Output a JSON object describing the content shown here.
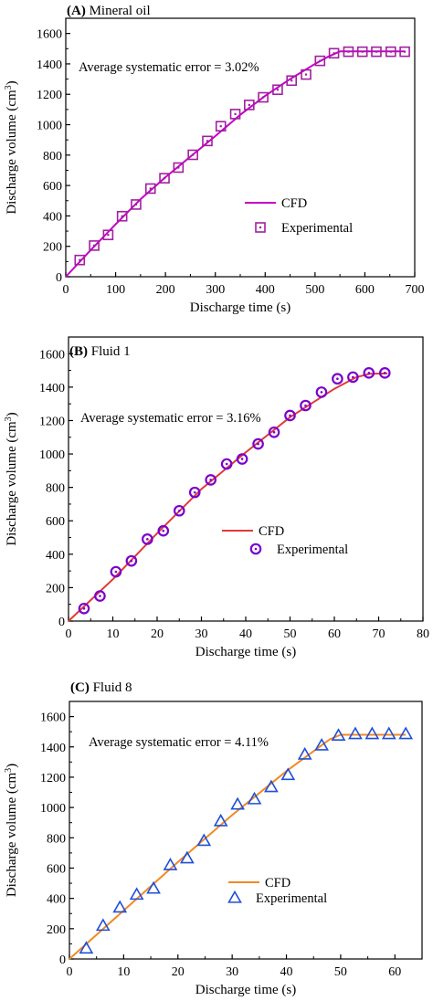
{
  "chart_data": [
    {
      "type": "line",
      "panel_label": "(A)",
      "title": "Mineral oil",
      "annotation": "Average systematic error = 3.02%",
      "xlabel": "Discharge time (s)",
      "ylabel": "Discharge volume (cm3)",
      "xlim": [
        0,
        700
      ],
      "ylim": [
        0,
        1700
      ],
      "xticks": [
        0,
        100,
        200,
        300,
        400,
        500,
        600,
        700
      ],
      "yticks": [
        0,
        200,
        400,
        600,
        800,
        1000,
        1200,
        1400,
        1600
      ],
      "grid": false,
      "legend_position": "center-right",
      "series": [
        {
          "name": "CFD",
          "kind": "line",
          "color": "#c400c4",
          "x": [
            0,
            50,
            100,
            150,
            200,
            250,
            300,
            350,
            400,
            450,
            500,
            525,
            550,
            680
          ],
          "y": [
            0,
            175,
            345,
            510,
            655,
            790,
            925,
            1065,
            1190,
            1300,
            1400,
            1445,
            1482,
            1482
          ]
        },
        {
          "name": "Experimental",
          "kind": "square",
          "color": "#a020a0",
          "x": [
            28,
            57,
            85,
            113,
            141,
            170,
            198,
            226,
            255,
            284,
            311,
            340,
            368,
            396,
            425,
            453,
            482,
            510,
            538,
            567,
            595,
            623,
            652,
            680
          ],
          "y": [
            110,
            205,
            275,
            398,
            475,
            580,
            648,
            718,
            802,
            893,
            990,
            1070,
            1130,
            1180,
            1230,
            1290,
            1330,
            1420,
            1470,
            1480,
            1480,
            1480,
            1480,
            1480
          ]
        }
      ]
    },
    {
      "type": "line",
      "panel_label": "(B)",
      "title": "Fluid 1",
      "annotation": "Average systematic error = 3.16%",
      "xlabel": "Discharge time (s)",
      "ylabel": "Discharge volume (cm3)",
      "xlim": [
        0,
        80
      ],
      "ylim": [
        0,
        1700
      ],
      "xticks": [
        0,
        10,
        20,
        30,
        40,
        50,
        60,
        70,
        80
      ],
      "yticks": [
        0,
        200,
        400,
        600,
        800,
        1000,
        1200,
        1400,
        1600
      ],
      "grid": false,
      "legend_position": "center-right",
      "series": [
        {
          "name": "CFD",
          "kind": "line",
          "color": "#e03a3a",
          "x": [
            0,
            10,
            20,
            30,
            40,
            50,
            60,
            65,
            68,
            72
          ],
          "y": [
            0,
            250,
            525,
            790,
            1010,
            1220,
            1390,
            1460,
            1480,
            1482
          ]
        },
        {
          "name": "Experimental",
          "kind": "circle",
          "color": "#7a00cc",
          "x": [
            3.5,
            7.1,
            10.7,
            14.2,
            17.8,
            21.4,
            25.0,
            28.5,
            32.1,
            35.7,
            39.2,
            42.8,
            46.4,
            50.0,
            53.5,
            57.1,
            60.7,
            64.2,
            67.8,
            71.4
          ],
          "y": [
            75,
            150,
            295,
            360,
            490,
            540,
            660,
            770,
            845,
            940,
            970,
            1060,
            1130,
            1230,
            1290,
            1370,
            1450,
            1460,
            1485,
            1485
          ]
        }
      ]
    },
    {
      "type": "line",
      "panel_label": "(C)",
      "title": "Fluid 8",
      "annotation": "Average systematic error = 4.11%",
      "xlabel": "Discharge time (s)",
      "ylabel": "Discharge volume (cm3)",
      "xlim": [
        0,
        65
      ],
      "ylim": [
        0,
        1700
      ],
      "xticks": [
        0,
        10,
        20,
        30,
        40,
        50,
        60
      ],
      "yticks": [
        0,
        200,
        400,
        600,
        800,
        1000,
        1200,
        1400,
        1600
      ],
      "grid": false,
      "legend_position": "bottom-right",
      "series": [
        {
          "name": "CFD",
          "kind": "line",
          "color": "#f08a24",
          "x": [
            0,
            10,
            20,
            30,
            40,
            48,
            50,
            62
          ],
          "y": [
            0,
            320,
            640,
            950,
            1240,
            1450,
            1480,
            1480
          ]
        },
        {
          "name": "Experimental",
          "kind": "triangle",
          "color": "#1f4fd8",
          "x": [
            3.1,
            6.2,
            9.3,
            12.4,
            15.5,
            18.6,
            21.7,
            24.8,
            27.9,
            31.0,
            34.1,
            37.2,
            40.3,
            43.4,
            46.5,
            49.6,
            52.7,
            55.8,
            58.9,
            62.0
          ],
          "y": [
            70,
            220,
            340,
            425,
            465,
            620,
            665,
            780,
            910,
            1020,
            1055,
            1135,
            1215,
            1350,
            1410,
            1475,
            1485,
            1485,
            1485,
            1485
          ]
        }
      ]
    }
  ]
}
